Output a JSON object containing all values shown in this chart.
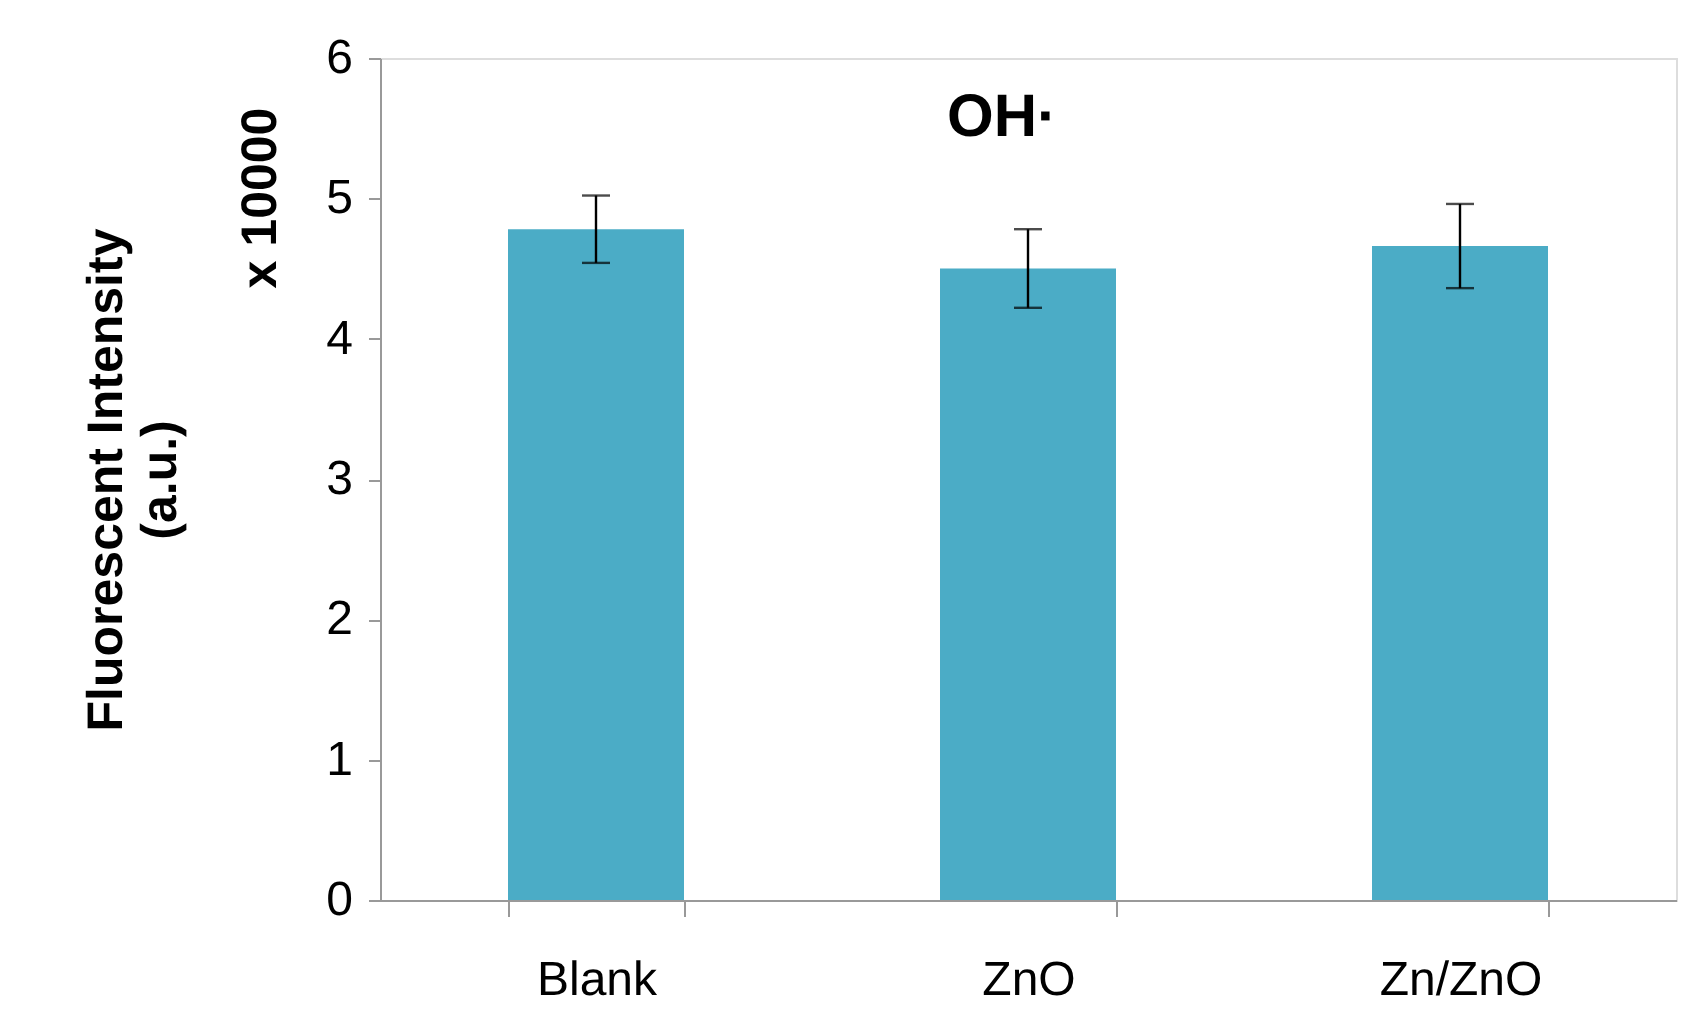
{
  "chart_data": {
    "type": "bar",
    "title": "OH·",
    "ylabel": "Fluorescent Intensity\n(a.u.)",
    "annotations": [
      "x 10000"
    ],
    "categories": [
      "Blank",
      "ZnO",
      "Zn/ZnO"
    ],
    "values": [
      4.78,
      4.5,
      4.66
    ],
    "errors": [
      0.24,
      0.28,
      0.3
    ],
    "color": "#4bacc6",
    "ylim": [
      0,
      6
    ],
    "yticks": [
      0,
      1,
      2,
      3,
      4,
      5,
      6
    ],
    "grid": false
  }
}
